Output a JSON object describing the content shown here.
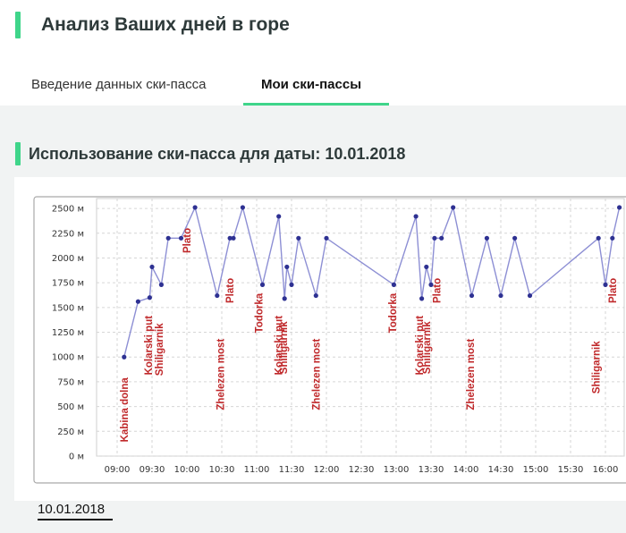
{
  "header": {
    "title": "Анализ Ваших дней в горе"
  },
  "tabs": [
    {
      "label": "Введение данных ски-пасса",
      "active": false
    },
    {
      "label": "Мои ски-пассы",
      "active": true
    }
  ],
  "section": {
    "title": "Использование ски-пасса для даты: 10.01.2018"
  },
  "date_link": "10.01.2018",
  "colors": {
    "accent": "#3fd58a",
    "line": "#8d8fd4",
    "point": "#2e3192",
    "label": "#c0292b"
  },
  "chart_data": {
    "type": "line",
    "title": "",
    "xlabel": "",
    "ylabel": "",
    "x_ticks": [
      "09:00",
      "09:30",
      "10:00",
      "10:30",
      "11:00",
      "11:30",
      "12:00",
      "12:30",
      "13:00",
      "13:30",
      "14:00",
      "14:30",
      "15:00",
      "15:30",
      "16:00"
    ],
    "y_ticks": [
      "0 м",
      "250 м",
      "500 м",
      "750 м",
      "1000 м",
      "1250 м",
      "1500 м",
      "1750 м",
      "2000 м",
      "2250 м",
      "2500 м"
    ],
    "ylim": [
      0,
      2600
    ],
    "grid": true,
    "series": [
      {
        "x": [
          "09:06",
          "09:18",
          "09:28",
          "09:30",
          "09:38",
          "09:44",
          "09:55",
          "10:07",
          "10:26",
          "10:37",
          "10:40",
          "10:48",
          "11:05",
          "11:19",
          "11:24",
          "11:26",
          "11:30",
          "11:36",
          "11:51",
          "12:00",
          "12:58",
          "13:17",
          "13:22",
          "13:26",
          "13:30",
          "13:33",
          "13:39",
          "13:49",
          "14:05",
          "14:18",
          "14:30",
          "14:42",
          "14:55",
          "15:54",
          "16:00",
          "16:06",
          "16:12"
        ],
        "y": [
          1000,
          1560,
          1600,
          1910,
          1730,
          2200,
          2200,
          2510,
          1620,
          2200,
          2200,
          2510,
          1730,
          2420,
          1590,
          1910,
          1730,
          2200,
          1620,
          2200,
          1730,
          2420,
          1590,
          1910,
          1730,
          2200,
          2200,
          2510,
          1620,
          2200,
          1620,
          2200,
          1620,
          2200,
          1730,
          2200,
          2510
        ]
      }
    ],
    "annotations": [
      {
        "text": "Kabina dolna",
        "x": "09:06"
      },
      {
        "text": "Kolarski put",
        "x": "09:27"
      },
      {
        "text": "Shiligarnik",
        "x": "09:36"
      },
      {
        "text": "Plato",
        "x": "10:00"
      },
      {
        "text": "Zhelezen most",
        "x": "10:29"
      },
      {
        "text": "Plato",
        "x": "10:37"
      },
      {
        "text": "Todorka",
        "x": "11:02"
      },
      {
        "text": "Kolarski put",
        "x": "11:19"
      },
      {
        "text": "Shiligarnik",
        "x": "11:23"
      },
      {
        "text": "Zhelezen most",
        "x": "11:51"
      },
      {
        "text": "Todorka",
        "x": "12:57"
      },
      {
        "text": "Kolarski put",
        "x": "13:20"
      },
      {
        "text": "Shiligarnik",
        "x": "13:26"
      },
      {
        "text": "Plato",
        "x": "13:35"
      },
      {
        "text": "Zhelezen most",
        "x": "14:04"
      },
      {
        "text": "Shiligarnik",
        "x": "15:52"
      },
      {
        "text": "Plato",
        "x": "16:06"
      }
    ]
  }
}
